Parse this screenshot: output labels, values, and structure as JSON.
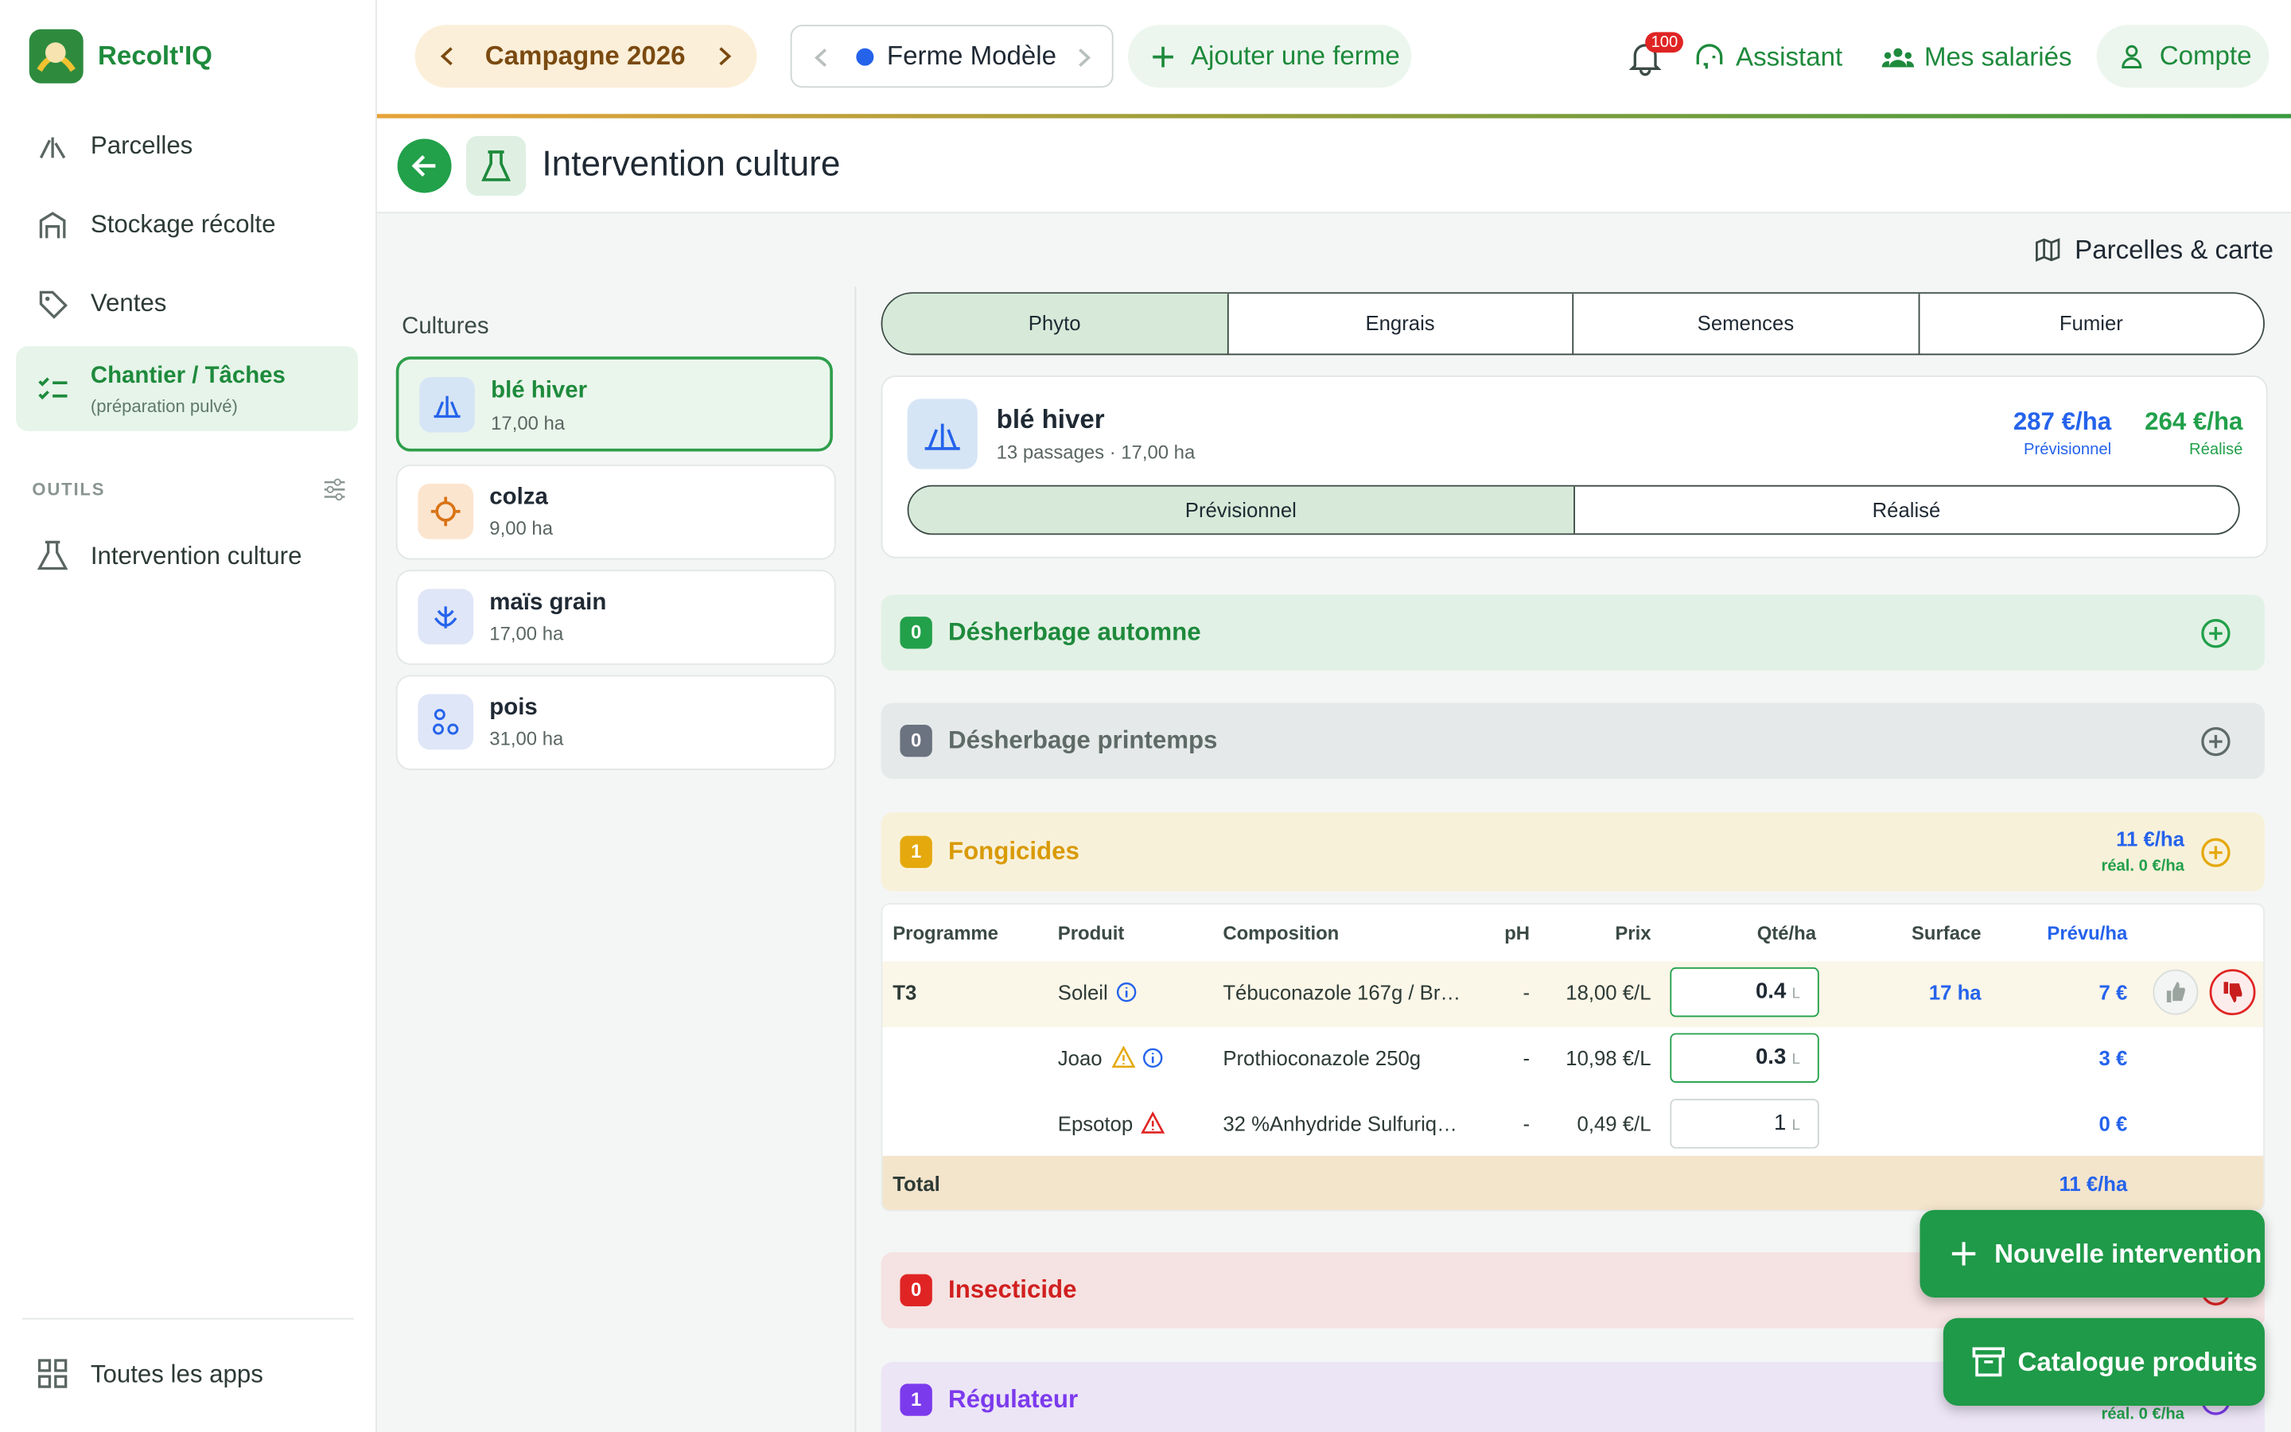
{
  "sidebar": {
    "brand": "Recolt'IQ",
    "nav": [
      {
        "label": "Parcelles"
      },
      {
        "label": "Stockage récolte"
      },
      {
        "label": "Ventes"
      },
      {
        "label": "Chantier / Tâches",
        "sublabel": "(préparation pulvé)"
      }
    ],
    "tools_heading": "OUTILS",
    "tools": [
      "Intervention culture"
    ],
    "footer": "Toutes les apps"
  },
  "topbar": {
    "campaign": "Campagne 2026",
    "farm": "Ferme Modèle",
    "add_farm": "Ajouter une ferme",
    "notifications": "100",
    "assistant": "Assistant",
    "employees": "Mes salariés",
    "account": "Compte"
  },
  "page": {
    "title": "Intervention culture",
    "map_link": "Parcelles & carte"
  },
  "cultures": {
    "heading": "Cultures",
    "items": [
      {
        "name": "blé hiver",
        "area": "17,00 ha"
      },
      {
        "name": "colza",
        "area": "9,00 ha"
      },
      {
        "name": "maïs grain",
        "area": "17,00 ha"
      },
      {
        "name": "pois",
        "area": "31,00 ha"
      }
    ]
  },
  "tabs": [
    "Phyto",
    "Engrais",
    "Semences",
    "Fumier"
  ],
  "summary": {
    "name": "blé hiver",
    "details": "13 passages · 17,00 ha",
    "planned_cost": "287 €/ha",
    "planned_label": "Prévisionnel",
    "actual_cost": "264 €/ha",
    "actual_label": "Réalisé",
    "modes": [
      "Prévisionnel",
      "Réalisé"
    ]
  },
  "sections": [
    {
      "count": "0",
      "title": "Désherbage automne"
    },
    {
      "count": "0",
      "title": "Désherbage printemps"
    },
    {
      "count": "1",
      "title": "Fongicides",
      "planned": "11 €/ha",
      "actual": "réal. 0 €/ha"
    },
    {
      "count": "0",
      "title": "Insecticide"
    },
    {
      "count": "1",
      "title": "Régulateur",
      "actual": "réal. 0 €/ha"
    }
  ],
  "table": {
    "columns": [
      "Programme",
      "Produit",
      "Composition",
      "pH",
      "Prix",
      "Qté/ha",
      "Surface",
      "Prévu/ha"
    ],
    "rows": [
      {
        "program": "T3",
        "product": "Soleil",
        "composition": "Tébuconazole 167g / Br…",
        "ph": "-",
        "price": "18,00 €/L",
        "qty": "0.4",
        "unit": "L",
        "surface": "17 ha",
        "planned": "7 €"
      },
      {
        "product": "Joao",
        "composition": "Prothioconazole 250g",
        "ph": "-",
        "price": "10,98 €/L",
        "qty": "0.3",
        "unit": "L",
        "planned": "3 €"
      },
      {
        "product": "Epsotop",
        "composition": "32 %Anhydride Sulfuriq…",
        "ph": "-",
        "price": "0,49 €/L",
        "qty": "1",
        "unit": "L",
        "planned": "0 €"
      }
    ],
    "total_label": "Total",
    "total": "11 €/ha"
  },
  "actions": {
    "new": "Nouvelle intervention",
    "catalog": "Catalogue produits"
  }
}
